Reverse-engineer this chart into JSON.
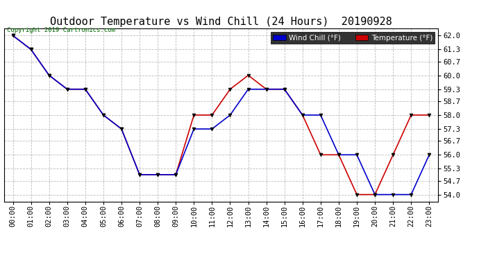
{
  "title": "Outdoor Temperature vs Wind Chill (24 Hours)  20190928",
  "copyright": "Copyright 2019 Cartronics.com",
  "legend_wind": "Wind Chill (°F)",
  "legend_temp": "Temperature (°F)",
  "background_color": "#ffffff",
  "plot_bg_color": "#ffffff",
  "grid_color": "#bbbbbb",
  "hours": [
    "00:00",
    "01:00",
    "02:00",
    "03:00",
    "04:00",
    "05:00",
    "06:00",
    "07:00",
    "08:00",
    "09:00",
    "10:00",
    "11:00",
    "12:00",
    "13:00",
    "14:00",
    "15:00",
    "16:00",
    "17:00",
    "18:00",
    "19:00",
    "20:00",
    "21:00",
    "22:00",
    "23:00"
  ],
  "temperature": [
    62.0,
    61.3,
    60.0,
    59.3,
    59.3,
    58.0,
    57.3,
    55.0,
    55.0,
    55.0,
    58.0,
    58.0,
    59.3,
    60.0,
    59.3,
    59.3,
    58.0,
    56.0,
    56.0,
    54.0,
    54.0,
    56.0,
    58.0,
    58.0
  ],
  "wind_chill": [
    62.0,
    61.3,
    60.0,
    59.3,
    59.3,
    58.0,
    57.3,
    55.0,
    55.0,
    55.0,
    57.3,
    57.3,
    58.0,
    59.3,
    59.3,
    59.3,
    58.0,
    58.0,
    56.0,
    56.0,
    54.0,
    54.0,
    54.0,
    56.0
  ],
  "temp_color": "#cc0000",
  "wind_color": "#0000cc",
  "marker_color": "#000000",
  "ylim_min": 53.65,
  "ylim_max": 62.35,
  "yticks": [
    54.0,
    54.7,
    55.3,
    56.0,
    56.7,
    57.3,
    58.0,
    58.7,
    59.3,
    60.0,
    60.7,
    61.3,
    62.0
  ],
  "title_fontsize": 11,
  "tick_fontsize": 7.5,
  "legend_fontsize": 7.5,
  "copyright_fontsize": 6.5
}
